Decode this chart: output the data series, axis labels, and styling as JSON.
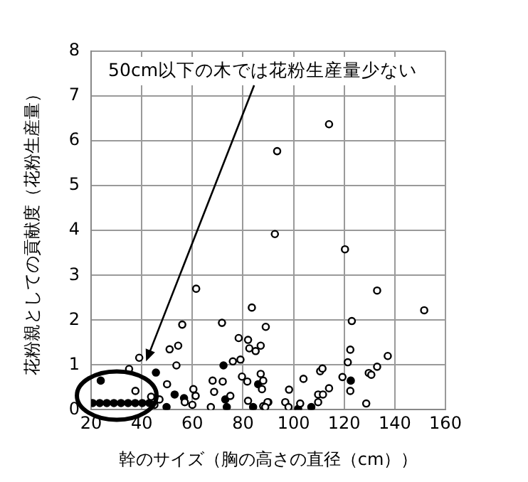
{
  "chart_data": {
    "type": "scatter",
    "xlabel": "幹のサイズ（胸の高さの直径（cm））",
    "ylabel": "花粉親としての貢献度（花粉生産量）",
    "xlim": [
      20,
      160
    ],
    "xticks": [
      20,
      40,
      60,
      80,
      100,
      120,
      140,
      160
    ],
    "ylim": [
      0,
      8
    ],
    "yticks": [
      0,
      1,
      2,
      3,
      4,
      5,
      6,
      7,
      8
    ],
    "grid": true,
    "legend": false,
    "marker": "circle",
    "annotations": [
      {
        "text": "50cm以下の木では花粉生産量少ない",
        "x": 41.7,
        "y": 1.08
      }
    ],
    "series": [
      {
        "color": "#000000",
        "x": [
          39,
          35,
          37.5,
          43.7,
          47,
          45,
          51,
          54.4,
          56,
          53.7,
          50,
          61.5,
          60.4,
          61.3,
          57,
          60,
          68.6,
          68,
          67.3,
          71.7,
          72,
          75,
          76,
          79,
          78.3,
          82,
          82.5,
          83.5,
          85,
          87,
          89,
          79.6,
          81.7,
          87,
          88,
          87.5,
          82,
          90,
          88,
          92.6,
          93.5,
          114,
          120.3,
          133,
          151.6,
          123,
          122.4,
          137.2,
          121.4,
          133,
          129.7,
          130.7,
          110.5,
          111.4,
          119.3,
          103.9,
          114,
          109.7,
          111.6,
          109.7,
          98.2,
          96.7,
          98,
          102.6,
          89.7,
          88.8,
          122.4,
          128.7
        ],
        "values": [
          1.16,
          0.91,
          0.42,
          0.29,
          0.23,
          0.11,
          1.35,
          1.43,
          1.9,
          0.99,
          0.57,
          2.7,
          0.46,
          0.31,
          0.17,
          0.11,
          0.4,
          0.65,
          0.06,
          1.94,
          0.63,
          0.31,
          1.08,
          1.12,
          1.6,
          1.56,
          1.37,
          2.28,
          1.31,
          1.43,
          1.85,
          0.74,
          0.63,
          0.8,
          0.65,
          0.46,
          0.2,
          0.17,
          0.08,
          3.92,
          5.77,
          6.37,
          3.58,
          2.66,
          2.22,
          1.98,
          1.34,
          1.2,
          1.06,
          0.96,
          0.82,
          0.78,
          0.86,
          0.92,
          0.73,
          0.69,
          0.48,
          0.34,
          0.34,
          0.17,
          0.45,
          0.17,
          0.06,
          0.14,
          0.17,
          0.06,
          0.42,
          0.14
        ]
      },
      {
        "color": "#000000",
        "x": [
          23.8,
          20.6,
          23.4,
          26.2,
          29,
          31.8,
          34.6,
          37.4,
          40.2,
          43,
          45.6,
          49.8,
          53,
          56.7,
          72.3,
          73,
          73.6,
          84,
          86,
          122.6,
          101.8,
          107
        ],
        "values": [
          0.65,
          0.15,
          0.15,
          0.15,
          0.15,
          0.15,
          0.15,
          0.15,
          0.15,
          0.15,
          0.83,
          0.06,
          0.34,
          0.26,
          0.99,
          0.23,
          0.06,
          0.06,
          0.57,
          0.65,
          0.02,
          0.06
        ]
      }
    ]
  }
}
